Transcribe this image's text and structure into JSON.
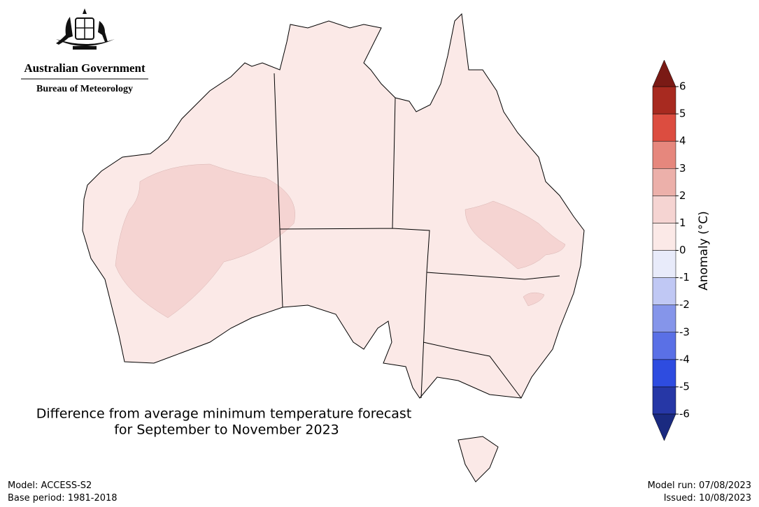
{
  "header": {
    "government": "Australian Government",
    "agency": "Bureau of Meteorology"
  },
  "title": [
    "Difference from average minimum temperature forecast",
    "for September to November 2023"
  ],
  "footer_left": [
    "Model: ACCESS-S2",
    "Base period: 1981-2018"
  ],
  "footer_right": [
    "Model run: 07/08/2023",
    "Issued: 10/08/2023"
  ],
  "colorbar": {
    "label": "Anomaly (°C)",
    "ticks": [
      -6,
      -5,
      -4,
      -3,
      -2,
      -1,
      0,
      1,
      2,
      3,
      4,
      5,
      6
    ],
    "colors": [
      "#2637a6",
      "#2e4ce0",
      "#5a70e6",
      "#8595ea",
      "#c0c8f4",
      "#e8ebfa",
      "#fbe9e7",
      "#f5d4d2",
      "#ecb0aa",
      "#e6877d",
      "#dc4d40",
      "#a82a20"
    ],
    "under_color": "#1a2a80",
    "over_color": "#7a1a15"
  }
}
